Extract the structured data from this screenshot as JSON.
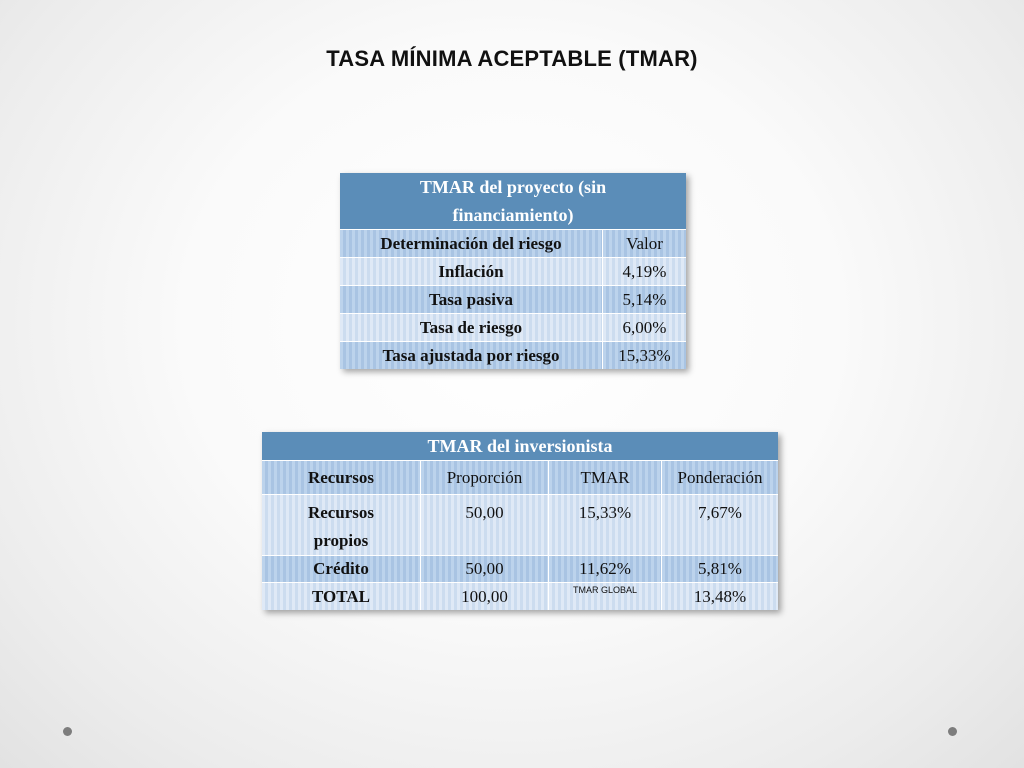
{
  "title": "TASA MÍNIMA ACEPTABLE (TMAR)",
  "table1": {
    "header_line1": "TMAR del proyecto (sin",
    "header_line2": "financiamiento)",
    "col1": "Determinación del riesgo",
    "col2": "Valor",
    "rows": [
      {
        "label": "Inflación",
        "value": "4,19%"
      },
      {
        "label": "Tasa pasiva",
        "value": "5,14%"
      },
      {
        "label": "Tasa de riesgo",
        "value": "6,00%"
      },
      {
        "label": "Tasa ajustada por riesgo",
        "value": "15,33%"
      }
    ]
  },
  "table2": {
    "header": "TMAR del inversionista",
    "cols": [
      "Recursos",
      "Proporción",
      "TMAR",
      "Ponderación"
    ],
    "rows": [
      {
        "recurso_line1": "Recursos",
        "recurso_line2": "propios",
        "proporcion": "50,00",
        "tmar": "15,33%",
        "ponderacion": "7,67%"
      },
      {
        "recurso": "Crédito",
        "proporcion": "50,00",
        "tmar": "11,62%",
        "ponderacion": "5,81%"
      },
      {
        "recurso": "TOTAL",
        "proporcion": "100,00",
        "tmar": "TMAR GLOBAL",
        "ponderacion": "13,48%"
      }
    ]
  }
}
